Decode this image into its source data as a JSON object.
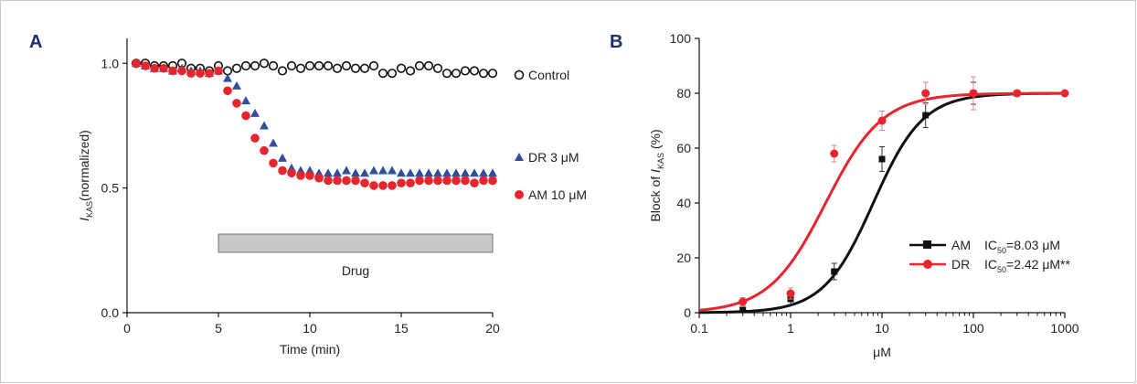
{
  "colors": {
    "control": "#111111",
    "dr": "#2f4f9e",
    "am": "#e8242c",
    "am_fit": "#111111",
    "dr_fit": "#e8242c",
    "drug_bar": "#c8c8c8",
    "panel_letter": "#1a2f6b"
  },
  "chart_data": [
    {
      "panel": "A",
      "type": "scatter",
      "xlabel": "Time (min)",
      "ylabel_main": "I",
      "ylabel_sub": "KAS",
      "ylabel_rest": "(normalized)",
      "xlim": [
        0,
        20
      ],
      "ylim": [
        0,
        1.1
      ],
      "x_ticks": [
        0,
        5,
        10,
        15,
        20
      ],
      "x_tick_labels": [
        "0",
        "5",
        "10",
        "15",
        "20"
      ],
      "y_ticks": [
        0,
        0.5,
        1.0
      ],
      "y_tick_labels": [
        "0.0",
        "0.5",
        "1.0"
      ],
      "drug_bar": {
        "label": "Drug",
        "x_start": 5,
        "x_end": 20
      },
      "series": [
        {
          "name": "Control",
          "marker": "open-circle",
          "x": [
            0.5,
            1,
            1.5,
            2,
            2.5,
            3,
            3.5,
            4,
            4.5,
            5,
            5.5,
            6,
            6.5,
            7,
            7.5,
            8,
            8.5,
            9,
            9.5,
            10,
            10.5,
            11,
            11.5,
            12,
            12.5,
            13,
            13.5,
            14,
            14.5,
            15,
            15.5,
            16,
            16.5,
            17,
            17.5,
            18,
            18.5,
            19,
            19.5,
            20
          ],
          "y": [
            1.0,
            1.0,
            0.99,
            0.99,
            0.99,
            1.0,
            0.98,
            0.98,
            0.97,
            0.99,
            0.97,
            0.98,
            0.99,
            0.99,
            1.0,
            0.99,
            0.97,
            0.99,
            0.98,
            0.99,
            0.99,
            0.99,
            0.98,
            0.99,
            0.98,
            0.98,
            0.99,
            0.96,
            0.96,
            0.98,
            0.97,
            0.99,
            0.99,
            0.98,
            0.96,
            0.96,
            0.97,
            0.97,
            0.96,
            0.96
          ]
        },
        {
          "name": "DR 3 μM",
          "marker": "triangle",
          "x": [
            0.5,
            1,
            1.5,
            2,
            2.5,
            3,
            3.5,
            4,
            4.5,
            5,
            5.5,
            6,
            6.5,
            7,
            7.5,
            8,
            8.5,
            9,
            9.5,
            10,
            10.5,
            11,
            11.5,
            12,
            12.5,
            13,
            13.5,
            14,
            14.5,
            15,
            15.5,
            16,
            16.5,
            17,
            17.5,
            18,
            18.5,
            19,
            19.5,
            20
          ],
          "y": [
            1.0,
            0.99,
            0.98,
            0.98,
            0.97,
            0.98,
            0.97,
            0.97,
            0.96,
            0.97,
            0.94,
            0.91,
            0.85,
            0.8,
            0.75,
            0.68,
            0.62,
            0.58,
            0.57,
            0.57,
            0.56,
            0.56,
            0.56,
            0.57,
            0.56,
            0.56,
            0.57,
            0.57,
            0.57,
            0.56,
            0.56,
            0.56,
            0.56,
            0.56,
            0.56,
            0.56,
            0.56,
            0.56,
            0.56,
            0.56
          ]
        },
        {
          "name": "AM 10 μM",
          "marker": "filled-circle",
          "x": [
            0.5,
            1,
            1.5,
            2,
            2.5,
            3,
            3.5,
            4,
            4.5,
            5,
            5.5,
            6,
            6.5,
            7,
            7.5,
            8,
            8.5,
            9,
            9.5,
            10,
            10.5,
            11,
            11.5,
            12,
            12.5,
            13,
            13.5,
            14,
            14.5,
            15,
            15.5,
            16,
            16.5,
            17,
            17.5,
            18,
            18.5,
            19,
            19.5,
            20
          ],
          "y": [
            1.0,
            0.99,
            0.98,
            0.98,
            0.97,
            0.97,
            0.96,
            0.96,
            0.96,
            0.97,
            0.89,
            0.84,
            0.79,
            0.7,
            0.65,
            0.6,
            0.57,
            0.56,
            0.55,
            0.55,
            0.54,
            0.53,
            0.53,
            0.53,
            0.53,
            0.52,
            0.51,
            0.51,
            0.51,
            0.52,
            0.52,
            0.53,
            0.53,
            0.53,
            0.53,
            0.53,
            0.53,
            0.52,
            0.53,
            0.53
          ]
        }
      ]
    },
    {
      "panel": "B",
      "type": "line",
      "xlabel": "μM",
      "ylabel_main": "Block of ",
      "ylabel_italic": "I",
      "ylabel_sub": "KAS",
      "ylabel_rest": " (%)",
      "x_scale": "log",
      "xlim": [
        0.1,
        1000
      ],
      "ylim": [
        0,
        100
      ],
      "x_ticks": [
        0.1,
        1,
        10,
        100,
        1000
      ],
      "x_tick_labels": [
        "0.1",
        "1",
        "10",
        "100",
        "1000"
      ],
      "y_ticks": [
        0,
        20,
        40,
        60,
        80,
        100
      ],
      "y_tick_labels": [
        "0",
        "20",
        "40",
        "60",
        "80",
        "100"
      ],
      "series": [
        {
          "name": "AM",
          "ic50_label": "IC",
          "ic50_sub": "50",
          "ic50_value": "=8.03 μM",
          "ic50": 8.03,
          "max": 80,
          "hill": 1.6,
          "marker": "square",
          "x": [
            0.3,
            1,
            3,
            10,
            30,
            100,
            300
          ],
          "y": [
            1,
            5,
            15,
            56,
            72,
            80,
            80
          ],
          "err": [
            1,
            2,
            3,
            4.5,
            4.5,
            4,
            0
          ]
        },
        {
          "name": "DR",
          "ic50_label": "IC",
          "ic50_sub": "50",
          "ic50_value": "=2.42 μM**",
          "ic50": 2.42,
          "max": 80,
          "hill": 1.4,
          "marker": "circle",
          "x": [
            0.3,
            1,
            3,
            10,
            30,
            100,
            300,
            1000
          ],
          "y": [
            4,
            7,
            58,
            70,
            80,
            80,
            80,
            80
          ],
          "err": [
            1.5,
            2,
            3,
            3.5,
            4,
            6,
            0,
            0
          ]
        }
      ]
    }
  ]
}
